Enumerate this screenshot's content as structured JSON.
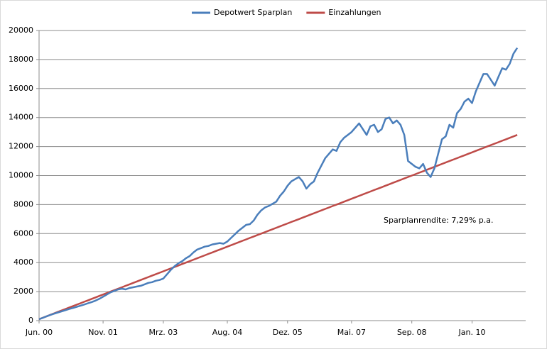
{
  "chart_data": {
    "type": "line",
    "annotation": "Sparplanrendite: 7,29% p.a.",
    "categories": [
      "Jun. 00",
      null,
      null,
      null,
      null,
      null,
      null,
      null,
      null,
      null,
      null,
      null,
      null,
      null,
      null,
      null,
      null,
      "Nov. 01",
      null,
      null,
      null,
      null,
      null,
      null,
      null,
      null,
      null,
      null,
      null,
      null,
      null,
      null,
      null,
      "Mrz. 03",
      null,
      null,
      null,
      null,
      null,
      null,
      null,
      null,
      null,
      null,
      null,
      null,
      null,
      null,
      null,
      null,
      "Aug. 04",
      null,
      null,
      null,
      null,
      null,
      null,
      null,
      null,
      null,
      null,
      null,
      null,
      null,
      null,
      null,
      "Dez. 05",
      null,
      null,
      null,
      null,
      null,
      null,
      null,
      null,
      null,
      null,
      null,
      null,
      null,
      null,
      null,
      null,
      "Mai. 07",
      null,
      null,
      null,
      null,
      null,
      null,
      null,
      null,
      null,
      null,
      null,
      null,
      null,
      null,
      null,
      "Sep. 08",
      null,
      null,
      null,
      null,
      null,
      null,
      null,
      null,
      null,
      null,
      null,
      null,
      null,
      null,
      null,
      "Jan. 10",
      null,
      null,
      null,
      null,
      null,
      null,
      null,
      null,
      null,
      null,
      null,
      null
    ],
    "series": [
      {
        "name": "Depotwert Sparplan",
        "color": "#4a7ebb",
        "values": [
          100,
          190,
          300,
          390,
          480,
          560,
          640,
          720,
          800,
          870,
          950,
          1030,
          1110,
          1200,
          1280,
          1380,
          1500,
          1650,
          1800,
          1950,
          2050,
          2150,
          2200,
          2150,
          2250,
          2300,
          2350,
          2400,
          2500,
          2600,
          2650,
          2750,
          2800,
          2900,
          3200,
          3500,
          3750,
          3950,
          4100,
          4300,
          4450,
          4700,
          4900,
          5000,
          5100,
          5150,
          5250,
          5300,
          5350,
          5300,
          5450,
          5700,
          5950,
          6200,
          6400,
          6600,
          6650,
          6900,
          7300,
          7600,
          7800,
          7900,
          8050,
          8200,
          8600,
          8900,
          9300,
          9600,
          9750,
          9900,
          9600,
          9100,
          9400,
          9600,
          10200,
          10700,
          11200,
          11500,
          11800,
          11700,
          12300,
          12600,
          12800,
          13000,
          13300,
          13600,
          13200,
          12800,
          13400,
          13500,
          13000,
          13200,
          13900,
          14000,
          13600,
          13800,
          13500,
          12800,
          11000,
          10800,
          10600,
          10500,
          10800,
          10200,
          9900,
          10500,
          11500,
          12500,
          12700,
          13500,
          13300,
          14300,
          14600,
          15100,
          15300,
          15000,
          15800,
          16400,
          17000,
          17000,
          16600,
          16200,
          16800,
          17400,
          17300,
          17700,
          18400,
          18800
        ]
      },
      {
        "name": "Einzahlungen",
        "color": "#be4b48",
        "values": [
          100,
          200,
          300,
          400,
          500,
          600,
          700,
          800,
          900,
          1000,
          1100,
          1200,
          1300,
          1400,
          1500,
          1600,
          1700,
          1800,
          1900,
          2000,
          2100,
          2200,
          2300,
          2400,
          2500,
          2600,
          2700,
          2800,
          2900,
          3000,
          3100,
          3200,
          3300,
          3400,
          3500,
          3600,
          3700,
          3800,
          3900,
          4000,
          4100,
          4200,
          4300,
          4400,
          4500,
          4600,
          4700,
          4800,
          4900,
          5000,
          5100,
          5200,
          5300,
          5400,
          5500,
          5600,
          5700,
          5800,
          5900,
          6000,
          6100,
          6200,
          6300,
          6400,
          6500,
          6600,
          6700,
          6800,
          6900,
          7000,
          7100,
          7200,
          7300,
          7400,
          7500,
          7600,
          7700,
          7800,
          7900,
          8000,
          8100,
          8200,
          8300,
          8400,
          8500,
          8600,
          8700,
          8800,
          8900,
          9000,
          9100,
          9200,
          9300,
          9400,
          9500,
          9600,
          9700,
          9800,
          9900,
          10000,
          10100,
          10200,
          10300,
          10400,
          10500,
          10600,
          10700,
          10800,
          10900,
          11000,
          11100,
          11200,
          11300,
          11400,
          11500,
          11600,
          11700,
          11800,
          11900,
          12000,
          12100,
          12200,
          12300,
          12400,
          12500,
          12600,
          12700,
          12800
        ]
      }
    ],
    "ylim": [
      0,
      20000
    ],
    "yticks": [
      0,
      2000,
      4000,
      6000,
      8000,
      10000,
      12000,
      14000,
      16000,
      18000,
      20000
    ],
    "grid": true,
    "legend": "top"
  }
}
